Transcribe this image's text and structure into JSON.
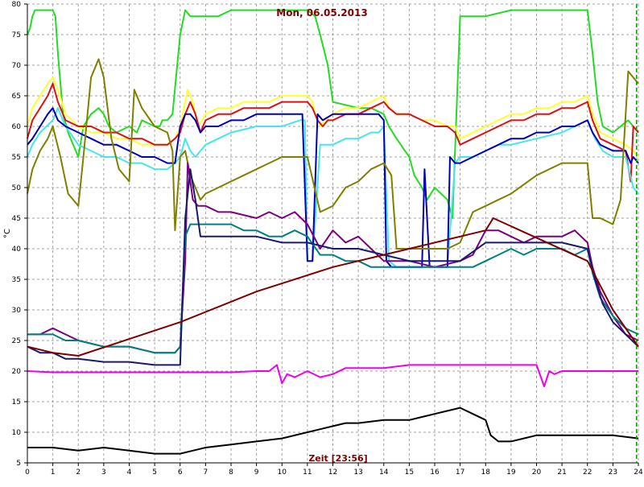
{
  "chart_data": {
    "type": "line",
    "title": "Mon, 06.05.2013",
    "xlabel": "Zeit [23:56]",
    "ylabel": "°C",
    "xlim": [
      0,
      24
    ],
    "ylim": [
      5,
      80
    ],
    "xticks": [
      0,
      1,
      2,
      3,
      4,
      5,
      6,
      7,
      8,
      9,
      10,
      11,
      12,
      13,
      14,
      15,
      16,
      17,
      18,
      19,
      20,
      21,
      22,
      23,
      24
    ],
    "yticks": [
      5,
      10,
      15,
      20,
      25,
      30,
      35,
      40,
      45,
      50,
      55,
      60,
      65,
      70,
      75,
      80
    ],
    "grid": true,
    "current_time_marker": 23.93,
    "colors": {
      "title": "#800000",
      "grid": "#a0a0a0",
      "axis": "#000000",
      "marker": "#00a000"
    },
    "series": [
      {
        "color": "#22dd22",
        "x": [
          0,
          0.1,
          0.2,
          0.3,
          0.5,
          0.7,
          1.0,
          1.1,
          1.2,
          1.4,
          1.6,
          1.8,
          2.0,
          2.2,
          2.5,
          2.8,
          3.0,
          3.2,
          3.5,
          4.0,
          4.3,
          4.5,
          5.0,
          5.2,
          5.3,
          5.5,
          5.7,
          6.0,
          6.2,
          6.4,
          6.6,
          7.0,
          7.5,
          8.0,
          8.5,
          9.0,
          9.5,
          10.0,
          10.5,
          11.0,
          11.3,
          11.5,
          11.8,
          12.0,
          13.0,
          13.5,
          14.0,
          14.2,
          14.5,
          15.0,
          15.2,
          15.5,
          15.7,
          16.0,
          16.5,
          16.7,
          17.0,
          17.5,
          18.0,
          19.0,
          20.0,
          21.0,
          22.0,
          22.2,
          22.4,
          22.6,
          23.0,
          23.3,
          23.6,
          23.8,
          24.0
        ],
        "y": [
          75,
          76,
          78,
          79,
          79,
          79,
          79,
          78,
          72,
          62,
          59,
          57,
          55,
          60,
          62,
          63,
          62,
          60,
          59,
          60,
          59,
          61,
          60,
          60,
          61,
          61,
          62,
          75,
          79,
          78,
          78,
          78,
          78,
          79,
          79,
          79,
          79,
          79,
          79,
          79,
          78,
          75,
          70,
          64,
          63,
          63,
          62,
          60,
          58,
          55,
          52,
          50,
          48,
          50,
          48,
          45,
          78,
          78,
          78,
          79,
          79,
          79,
          79,
          72,
          64,
          60,
          59,
          60,
          61,
          60,
          59
        ]
      },
      {
        "color": "#ffff33",
        "x": [
          0,
          0.2,
          0.5,
          0.8,
          1.0,
          1.2,
          1.5,
          2.0,
          2.5,
          3.0,
          3.5,
          4.0,
          4.5,
          5.0,
          5.5,
          5.8,
          6.0,
          6.2,
          6.3,
          6.5,
          6.7,
          7.0,
          7.5,
          8.0,
          8.5,
          9.0,
          9.5,
          10.0,
          10.5,
          11.0,
          11.2,
          11.3,
          11.5,
          11.7,
          12.0,
          12.5,
          13.0,
          13.5,
          14.0,
          14.2,
          14.5,
          15.0,
          15.5,
          16.0,
          16.5,
          16.8,
          17.0,
          17.5,
          18.0,
          18.5,
          19.0,
          19.5,
          20.0,
          20.5,
          21.0,
          21.5,
          22.0,
          22.2,
          22.5,
          23.0,
          23.5,
          23.8,
          24.0
        ],
        "y": [
          60,
          63,
          65,
          67,
          68,
          66,
          62,
          60,
          59,
          59,
          58,
          58,
          57,
          57,
          57,
          58,
          60,
          64,
          66,
          64,
          60,
          62,
          63,
          63,
          64,
          64,
          64,
          65,
          65,
          65,
          64,
          62,
          60,
          61,
          62,
          63,
          63,
          64,
          65,
          63,
          62,
          62,
          61,
          61,
          60,
          60,
          58,
          59,
          60,
          61,
          62,
          62,
          63,
          63,
          64,
          64,
          65,
          62,
          59,
          58,
          57,
          56,
          55
        ]
      },
      {
        "color": "#dd1111",
        "x": [
          0,
          0.2,
          0.5,
          0.8,
          1.0,
          1.2,
          1.5,
          2.0,
          2.5,
          3.0,
          3.5,
          4.0,
          4.5,
          5.0,
          5.5,
          5.8,
          6.0,
          6.2,
          6.4,
          6.6,
          6.8,
          7.0,
          7.5,
          8.0,
          8.5,
          9.0,
          9.5,
          10.0,
          10.5,
          11.0,
          11.2,
          11.4,
          11.6,
          11.8,
          12.0,
          12.5,
          13.0,
          13.5,
          14.0,
          14.2,
          14.5,
          15.0,
          15.5,
          16.0,
          16.5,
          16.8,
          17.0,
          17.5,
          18.0,
          18.5,
          19.0,
          19.5,
          20.0,
          20.5,
          21.0,
          21.5,
          22.0,
          22.2,
          22.5,
          23.0,
          23.5,
          23.7,
          23.8,
          24.0
        ],
        "y": [
          58,
          61,
          63,
          65,
          67,
          64,
          61,
          60,
          60,
          59,
          59,
          58,
          58,
          57,
          57,
          58,
          59,
          62,
          64,
          62,
          59,
          61,
          62,
          62,
          63,
          63,
          63,
          64,
          64,
          64,
          63,
          61,
          60,
          61,
          61,
          62,
          62,
          63,
          64,
          63,
          62,
          62,
          61,
          60,
          60,
          59,
          57,
          58,
          59,
          60,
          61,
          61,
          62,
          62,
          63,
          63,
          64,
          61,
          58,
          57,
          56,
          51,
          60,
          59
        ]
      },
      {
        "color": "#44e8e8",
        "x": [
          0,
          0.2,
          0.5,
          1.0,
          1.2,
          1.5,
          2.0,
          2.5,
          3.0,
          3.5,
          4.0,
          4.5,
          5.0,
          5.5,
          5.8,
          6.0,
          6.2,
          6.4,
          6.6,
          7.0,
          7.5,
          8.0,
          9.0,
          10.0,
          10.7,
          10.9,
          11.0,
          11.2,
          11.5,
          12.0,
          12.5,
          13.0,
          13.5,
          13.8,
          14.0,
          14.2,
          14.5,
          15.0,
          15.5,
          16.0,
          16.5,
          16.8,
          17.0,
          17.5,
          18.0,
          18.5,
          19.0,
          20.0,
          21.0,
          21.5,
          22.0,
          22.3,
          22.6,
          23.0,
          23.5,
          23.8,
          24.0
        ],
        "y": [
          55,
          57,
          59,
          61,
          63,
          60,
          57,
          56,
          55,
          55,
          54,
          54,
          53,
          53,
          54,
          55,
          58,
          56,
          55,
          57,
          58,
          59,
          60,
          60,
          61,
          61,
          38,
          38,
          57,
          57,
          58,
          58,
          59,
          59,
          60,
          38,
          37,
          37,
          37,
          37,
          37,
          54,
          55,
          55,
          56,
          57,
          57,
          58,
          59,
          60,
          61,
          58,
          56,
          55,
          55,
          50,
          49
        ]
      },
      {
        "color": "#0000bb",
        "x": [
          0,
          0.2,
          0.5,
          0.8,
          1.0,
          1.2,
          1.5,
          2.0,
          2.5,
          3.0,
          3.5,
          4.0,
          4.5,
          5.0,
          5.5,
          5.8,
          6.0,
          6.2,
          6.4,
          6.6,
          6.8,
          7.0,
          7.5,
          8.0,
          8.5,
          9.0,
          9.5,
          10.0,
          10.5,
          10.7,
          10.8,
          11.0,
          11.2,
          11.4,
          11.6,
          12.0,
          12.5,
          13.0,
          13.5,
          13.8,
          14.0,
          14.1,
          14.3,
          14.5,
          15.0,
          15.5,
          15.6,
          15.8,
          16.0,
          16.5,
          16.6,
          16.8,
          17.0,
          17.5,
          18.0,
          18.5,
          19.0,
          19.5,
          20.0,
          20.5,
          21.0,
          21.5,
          22.0,
          22.2,
          22.5,
          23.0,
          23.5,
          23.7,
          23.8,
          24.0
        ],
        "y": [
          57,
          58,
          60,
          62,
          63,
          61,
          60,
          59,
          58,
          57,
          57,
          56,
          55,
          55,
          54,
          54,
          60,
          62,
          62,
          61,
          59,
          60,
          60,
          61,
          61,
          62,
          62,
          62,
          62,
          62,
          62,
          38,
          38,
          62,
          61,
          62,
          62,
          62,
          62,
          62,
          61,
          38,
          37,
          37,
          37,
          37,
          53,
          37,
          37,
          37,
          55,
          54,
          54,
          55,
          56,
          57,
          58,
          58,
          59,
          59,
          60,
          60,
          61,
          59,
          57,
          56,
          56,
          54,
          55,
          54
        ]
      },
      {
        "color": "#808000",
        "x": [
          0,
          0.2,
          0.5,
          0.8,
          1.0,
          1.3,
          1.6,
          2.0,
          2.2,
          2.5,
          2.8,
          3.0,
          3.3,
          3.6,
          4.0,
          4.2,
          4.5,
          5.0,
          5.5,
          5.7,
          5.8,
          6.0,
          6.2,
          6.4,
          6.6,
          6.8,
          7.0,
          7.5,
          8.0,
          8.5,
          9.0,
          9.5,
          10.0,
          10.5,
          11.0,
          11.5,
          12.0,
          12.5,
          13.0,
          13.5,
          14.0,
          14.3,
          14.5,
          15.0,
          15.5,
          16.0,
          16.5,
          17.0,
          17.5,
          18.0,
          18.5,
          19.0,
          20.0,
          21.0,
          22.0,
          22.2,
          22.5,
          23.0,
          23.3,
          23.6,
          24.0
        ],
        "y": [
          49,
          53,
          56,
          58,
          60,
          55,
          49,
          47,
          55,
          68,
          71,
          68,
          58,
          53,
          51,
          66,
          63,
          60,
          59,
          56,
          43,
          55,
          56,
          52,
          50,
          48,
          49,
          50,
          51,
          52,
          53,
          54,
          55,
          55,
          55,
          46,
          47,
          50,
          51,
          53,
          54,
          52,
          40,
          40,
          40,
          40,
          40,
          41,
          46,
          47,
          48,
          49,
          52,
          54,
          54,
          45,
          45,
          44,
          48,
          69,
          67
        ]
      },
      {
        "color": "#7f007f",
        "x": [
          0,
          0.5,
          1.0,
          1.5,
          2.0,
          3.0,
          4.0,
          5.0,
          5.8,
          6.0,
          6.2,
          6.3,
          6.5,
          6.7,
          7.0,
          7.5,
          8.0,
          9.0,
          9.5,
          10.0,
          10.5,
          11.0,
          11.5,
          12.0,
          12.5,
          13.0,
          13.5,
          14.0,
          15.0,
          16.0,
          17.0,
          17.5,
          18.0,
          18.5,
          19.0,
          19.5,
          20.0,
          21.0,
          21.5,
          22.0,
          22.2,
          22.5,
          23.0,
          23.5,
          24.0
        ],
        "y": [
          26,
          26,
          27,
          26,
          25,
          24,
          24,
          23,
          23,
          24,
          38,
          54,
          48,
          47,
          47,
          46,
          46,
          45,
          46,
          45,
          46,
          44,
          40,
          43,
          41,
          42,
          40,
          38,
          38,
          37,
          38,
          39,
          43,
          43,
          42,
          41,
          42,
          42,
          43,
          41,
          37,
          33,
          29,
          26,
          25
        ]
      },
      {
        "color": "#008080",
        "x": [
          0,
          0.5,
          1.0,
          1.5,
          2.0,
          3.0,
          4.0,
          5.0,
          5.8,
          6.0,
          6.2,
          6.4,
          6.6,
          7.0,
          7.5,
          8.0,
          8.5,
          9.0,
          9.5,
          10.0,
          10.5,
          11.0,
          11.5,
          12.0,
          12.5,
          13.0,
          13.5,
          14.0,
          15.0,
          16.0,
          17.0,
          17.5,
          18.0,
          18.5,
          19.0,
          19.5,
          20.0,
          21.0,
          21.5,
          22.0,
          22.2,
          22.5,
          23.0,
          23.5,
          24.0
        ],
        "y": [
          26,
          26,
          26,
          25,
          25,
          24,
          24,
          23,
          23,
          24,
          42,
          44,
          44,
          44,
          44,
          44,
          43,
          43,
          42,
          42,
          43,
          42,
          39,
          39,
          38,
          38,
          37,
          37,
          37,
          37,
          37,
          37,
          38,
          39,
          40,
          39,
          40,
          40,
          39,
          40,
          36,
          32,
          29,
          27,
          26
        ]
      },
      {
        "color": "#191970",
        "x": [
          0,
          0.5,
          1.0,
          1.5,
          2.0,
          3.0,
          4.0,
          5.0,
          6.0,
          6.2,
          6.4,
          6.6,
          6.8,
          7.0,
          8.0,
          9.0,
          10.0,
          11.0,
          12.0,
          13.0,
          14.0,
          15.0,
          16.0,
          17.0,
          18.0,
          19.0,
          20.0,
          21.0,
          22.0,
          22.3,
          22.6,
          23.0,
          23.5,
          24.0
        ],
        "y": [
          24,
          23,
          23,
          22,
          22,
          21.5,
          21.5,
          21,
          21,
          45,
          53,
          48,
          42,
          42,
          42,
          42,
          41,
          41,
          40,
          40,
          39,
          38,
          38,
          38,
          41,
          41,
          41,
          41,
          40,
          35,
          31,
          28,
          26,
          24
        ]
      },
      {
        "color": "#800000",
        "x": [
          0,
          1.0,
          2.0,
          6.0,
          9.0,
          12.0,
          15.0,
          18.0,
          18.3,
          22.0,
          22.5,
          23.0,
          24.0
        ],
        "y": [
          24,
          23,
          22.5,
          28,
          33,
          37,
          40,
          43,
          45,
          38,
          34,
          30,
          24
        ]
      },
      {
        "color": "#ee00ee",
        "x": [
          0,
          1.0,
          2.0,
          3.0,
          4.0,
          5.0,
          6.0,
          7.0,
          8.0,
          9.0,
          9.5,
          9.8,
          10.0,
          10.2,
          10.5,
          11.0,
          11.5,
          12.0,
          12.5,
          13.0,
          14.0,
          15.0,
          16.0,
          17.0,
          18.0,
          19.0,
          20.0,
          20.3,
          20.5,
          20.7,
          21.0,
          22.0,
          23.0,
          24.0
        ],
        "y": [
          20,
          19.8,
          19.8,
          19.8,
          19.8,
          19.8,
          19.8,
          19.8,
          19.8,
          20,
          20,
          21,
          18,
          19.5,
          19,
          20,
          19,
          19.5,
          20.5,
          20.5,
          20.5,
          21,
          21,
          21,
          21,
          21,
          21,
          17.5,
          20,
          19.5,
          20,
          20,
          20,
          20
        ]
      },
      {
        "color": "#000000",
        "x": [
          0,
          1.0,
          2.0,
          3.0,
          4.0,
          5.0,
          5.5,
          6.0,
          6.5,
          7.0,
          8.0,
          9.0,
          10.0,
          11.0,
          11.5,
          12.0,
          12.5,
          13.0,
          14.0,
          15.0,
          15.5,
          16.0,
          16.5,
          17.0,
          17.5,
          18.0,
          18.2,
          18.5,
          19.0,
          19.5,
          20.0,
          21.0,
          22.0,
          23.0,
          24.0
        ],
        "y": [
          7.5,
          7.5,
          7,
          7.5,
          7,
          6.5,
          6.5,
          6.5,
          7,
          7.5,
          8,
          8.5,
          9,
          10,
          10.5,
          11,
          11.5,
          11.5,
          12,
          12,
          12.5,
          13,
          13.5,
          14,
          13,
          12,
          9.5,
          8.5,
          8.5,
          9,
          9.5,
          9.5,
          9.5,
          9.5,
          9
        ]
      }
    ]
  }
}
